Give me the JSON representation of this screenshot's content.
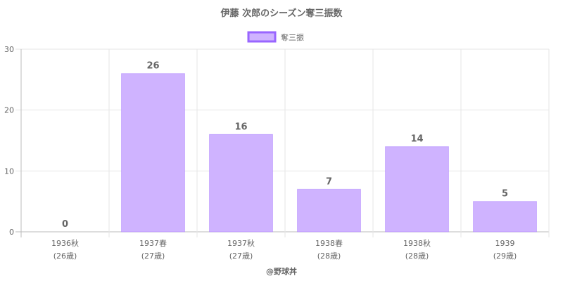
{
  "chart_data": {
    "type": "bar",
    "title": "伊藤 次郎のシーズン奪三振数",
    "categories": [
      [
        "1936秋",
        "(26歳)"
      ],
      [
        "1937春",
        "(27歳)"
      ],
      [
        "1937秋",
        "(27歳)"
      ],
      [
        "1938春",
        "(28歳)"
      ],
      [
        "1938秋",
        "(28歳)"
      ],
      [
        "1939",
        "(29歳)"
      ]
    ],
    "series": [
      {
        "name": "奪三振",
        "values": [
          0,
          26,
          16,
          7,
          14,
          5
        ],
        "color": "#cfb3ff",
        "border_color": "#9966ff"
      }
    ],
    "y_ticks": [
      0,
      10,
      20,
      30
    ],
    "ylim": [
      0,
      30
    ],
    "grid": true,
    "legend_position": "top",
    "data_labels": true
  },
  "credit": "@野球丼"
}
